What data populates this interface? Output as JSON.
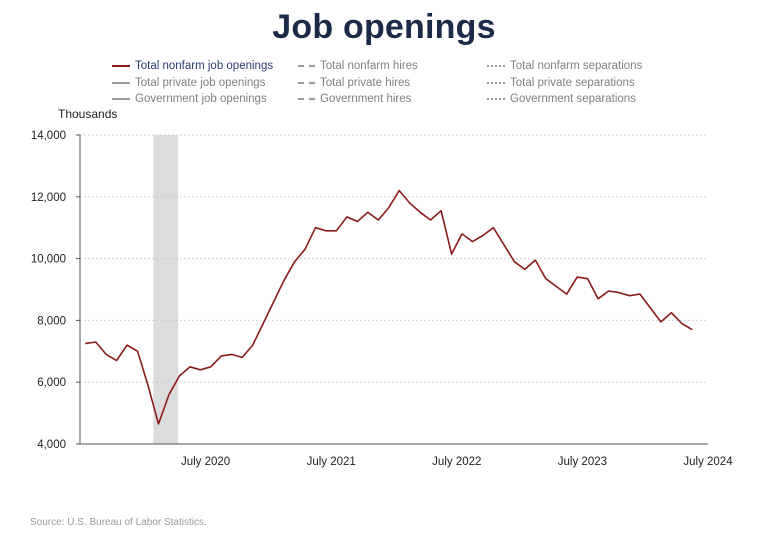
{
  "title": "Job openings",
  "y_unit": "Thousands",
  "source": "Source: U.S. Bureau of Labor Statistics.",
  "legend": {
    "items": [
      {
        "label": "Total nonfarm job openings",
        "style": "solid",
        "color": "#8b1a1a",
        "active": true
      },
      {
        "label": "Total private job openings",
        "style": "solid",
        "color": "#9a9a9a",
        "active": false
      },
      {
        "label": "Government job openings",
        "style": "solid",
        "color": "#9a9a9a",
        "active": false
      },
      {
        "label": "Total nonfarm hires",
        "style": "dashed",
        "color": "#9a9a9a",
        "active": false
      },
      {
        "label": "Total private hires",
        "style": "dashed",
        "color": "#9a9a9a",
        "active": false
      },
      {
        "label": "Government hires",
        "style": "dashed",
        "color": "#9a9a9a",
        "active": false
      },
      {
        "label": "Total nonfarm separations",
        "style": "dotted",
        "color": "#9a9a9a",
        "active": false
      },
      {
        "label": "Total private separations",
        "style": "dotted",
        "color": "#9a9a9a",
        "active": false
      },
      {
        "label": "Government separations",
        "style": "dotted",
        "color": "#9a9a9a",
        "active": false
      }
    ]
  },
  "colors": {
    "series": "#8b1a1a",
    "recession": "#dcdcdc",
    "grid": "#c8c8c8",
    "axis": "#555555",
    "title": "#1c2a4a"
  },
  "chart_data": {
    "type": "line",
    "ylim": [
      4000,
      14000
    ],
    "yticks": [
      4000,
      6000,
      8000,
      10000,
      12000,
      14000
    ],
    "ytick_labels": [
      "4,000",
      "6,000",
      "8,000",
      "10,000",
      "12,000",
      "14,000"
    ],
    "xlim": [
      "2019-07",
      "2024-07"
    ],
    "xticks": [
      "2020-07",
      "2021-07",
      "2022-07",
      "2023-07",
      "2024-07"
    ],
    "xtick_labels": [
      "July 2020",
      "July 2021",
      "July 2022",
      "July 2023",
      "July 2024"
    ],
    "grid": "horizontal-dotted",
    "recession": {
      "start": "2020-02",
      "end": "2020-04"
    },
    "series": [
      {
        "name": "Total nonfarm job openings",
        "x": [
          "2019-07",
          "2019-08",
          "2019-09",
          "2019-10",
          "2019-11",
          "2019-12",
          "2020-01",
          "2020-02",
          "2020-03",
          "2020-04",
          "2020-05",
          "2020-06",
          "2020-07",
          "2020-08",
          "2020-09",
          "2020-10",
          "2020-11",
          "2020-12",
          "2021-01",
          "2021-02",
          "2021-03",
          "2021-04",
          "2021-05",
          "2021-06",
          "2021-07",
          "2021-08",
          "2021-09",
          "2021-10",
          "2021-11",
          "2021-12",
          "2022-01",
          "2022-02",
          "2022-03",
          "2022-04",
          "2022-05",
          "2022-06",
          "2022-07",
          "2022-08",
          "2022-09",
          "2022-10",
          "2022-11",
          "2022-12",
          "2023-01",
          "2023-02",
          "2023-03",
          "2023-04",
          "2023-05",
          "2023-06",
          "2023-07",
          "2023-08",
          "2023-09",
          "2023-10",
          "2023-11",
          "2023-12",
          "2024-01",
          "2024-02",
          "2024-03",
          "2024-04",
          "2024-05",
          "2024-06",
          "2024-07"
        ],
        "values": [
          7250,
          7300,
          6900,
          6700,
          7200,
          7000,
          5900,
          4650,
          5600,
          6200,
          6500,
          6400,
          6500,
          6850,
          6900,
          6800,
          7200,
          7900,
          8600,
          9300,
          9900,
          10300,
          11000,
          10900,
          10900,
          11350,
          11200,
          11500,
          11250,
          11650,
          12200,
          11800,
          11500,
          11250,
          11550,
          10150,
          10800,
          10550,
          10750,
          11000,
          10450,
          9900,
          9650,
          9950,
          9350,
          9100,
          8850,
          9400,
          9350,
          8700,
          8950,
          8900,
          8800,
          8850,
          8400,
          7950,
          8250,
          7900,
          7700,
          null,
          null
        ]
      }
    ]
  }
}
